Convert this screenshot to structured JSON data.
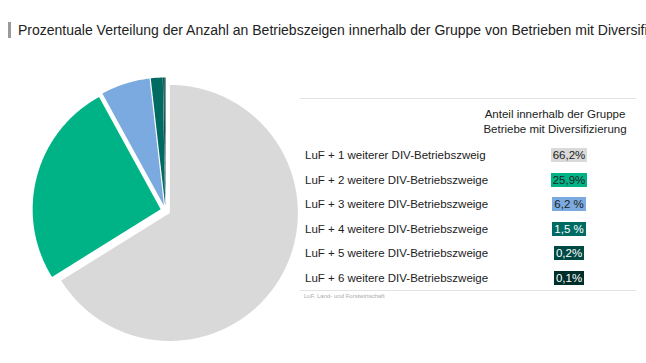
{
  "chart_data": {
    "type": "pie",
    "title": "Prozentuale Verteilung der Anzahl an Betriebszeigen innerhalb der Gruppe von Betrieben mit Diversifizierung",
    "categories": [
      "LuF + 1 weiterer DIV-Betriebszweig",
      "LuF + 2 weitere DIV-Betriebszweige",
      "LuF + 3 weitere DIV-Betriebszweige",
      "LuF + 4 weitere DIV-Betriebszweige",
      "LuF + 5 weitere DIV-Betriebszweige",
      "LuF + 6 weitere DIV-Betriebszweige"
    ],
    "values": [
      66.2,
      25.9,
      6.2,
      1.5,
      0.2,
      0.1
    ],
    "value_labels": [
      "66,2%",
      "25,9%",
      "6,2 %",
      "1,5 %",
      "0,2%",
      "0,1%"
    ],
    "colors": [
      "#d9d9d9",
      "#00b386",
      "#7aaadf",
      "#006b62",
      "#004a44",
      "#002e2a"
    ],
    "legend": "right",
    "legend_title": "Anteil innerhalb der Gruppe Betriebe mit Diversifizierung",
    "footnote": "LuF, Land- und Forstwirtschaft"
  }
}
